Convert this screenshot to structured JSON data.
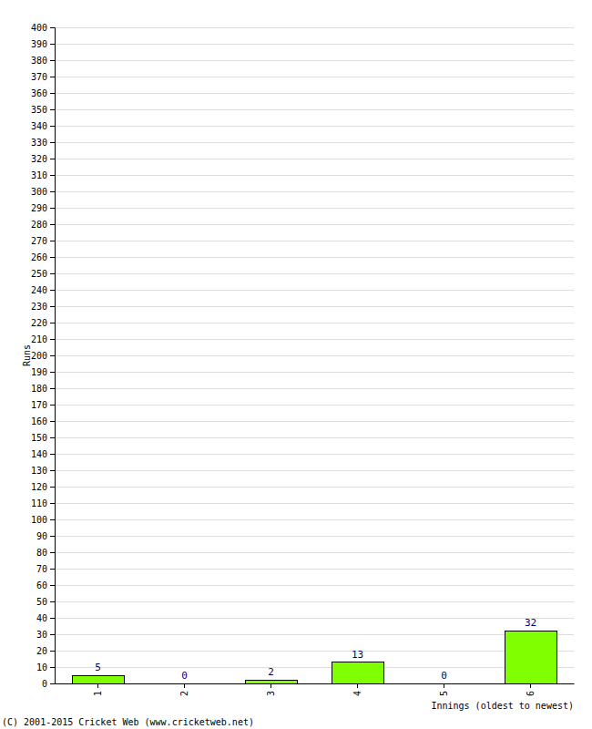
{
  "chart_data": {
    "type": "bar",
    "x_label": "Innings (oldest to newest)",
    "y_label": "Runs",
    "annotations": [
      "(C) 2001-2015 Cricket Web (www.cricketweb.net)"
    ],
    "categories": [
      "1",
      "2",
      "3",
      "4",
      "5",
      "6"
    ],
    "values": [
      5,
      0,
      2,
      13,
      0,
      32
    ],
    "color": "#80ff00",
    "ylim": [
      0,
      400
    ],
    "yticks": [
      0,
      10,
      20,
      30,
      40,
      50,
      60,
      70,
      80,
      90,
      100,
      110,
      120,
      130,
      140,
      150,
      160,
      170,
      180,
      190,
      200,
      210,
      220,
      230,
      240,
      250,
      260,
      270,
      280,
      290,
      300,
      310,
      320,
      330,
      340,
      350,
      360,
      370,
      380,
      390,
      400
    ],
    "grid": true,
    "data_labels": true
  }
}
